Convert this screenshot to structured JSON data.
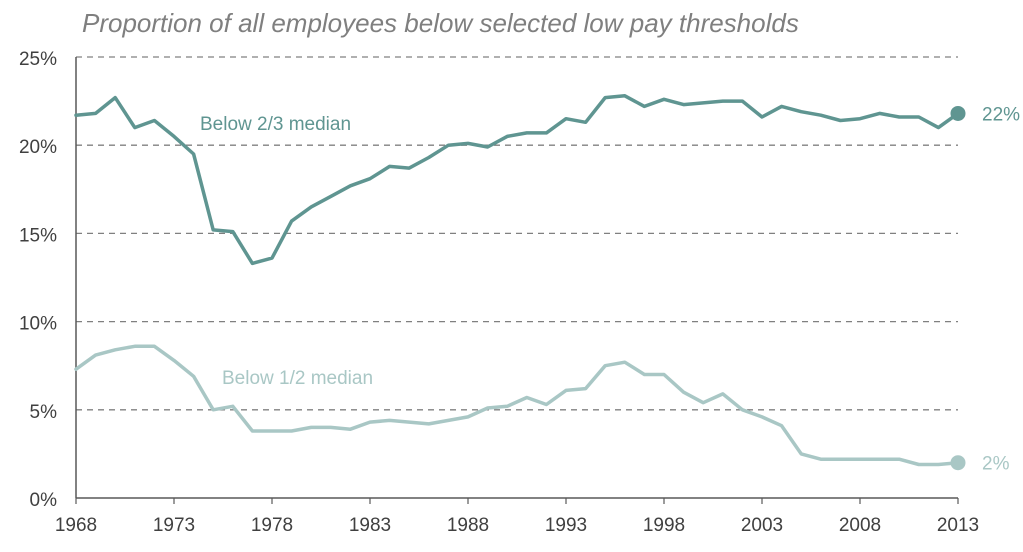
{
  "colors": {
    "dark_series": "#5f9591",
    "light_series": "#a9c7c5",
    "title": "#7f7f7f",
    "axis_text": "#404040",
    "grid": "#808080"
  },
  "chart_data": {
    "type": "line",
    "title": "Proportion of all employees below selected low pay thresholds",
    "xlabel": "",
    "ylabel": "",
    "xlim": [
      1968,
      2013
    ],
    "ylim": [
      0,
      25
    ],
    "x_ticks": [
      "1968",
      "1973",
      "1978",
      "1983",
      "1988",
      "1993",
      "1998",
      "2003",
      "2008",
      "2013"
    ],
    "y_ticks": [
      "0%",
      "5%",
      "10%",
      "15%",
      "20%",
      "25%"
    ],
    "grid": "horizontal dashed",
    "x": [
      1968,
      1969,
      1970,
      1971,
      1972,
      1973,
      1974,
      1975,
      1976,
      1977,
      1978,
      1979,
      1980,
      1981,
      1982,
      1983,
      1984,
      1985,
      1986,
      1987,
      1988,
      1989,
      1990,
      1991,
      1992,
      1993,
      1994,
      1995,
      1996,
      1997,
      1998,
      1999,
      2000,
      2001,
      2002,
      2003,
      2004,
      2005,
      2006,
      2007,
      2008,
      2009,
      2010,
      2011,
      2012,
      2013
    ],
    "series": [
      {
        "name": "Below 2/3 median",
        "end_label": "22%",
        "values": [
          21.7,
          21.8,
          22.7,
          21.0,
          21.4,
          20.5,
          19.5,
          15.2,
          15.1,
          13.3,
          13.6,
          15.7,
          16.5,
          17.1,
          17.7,
          18.1,
          18.8,
          18.7,
          19.3,
          20.0,
          20.1,
          19.9,
          20.5,
          20.7,
          20.7,
          21.5,
          21.3,
          22.7,
          22.8,
          22.2,
          22.6,
          22.3,
          22.4,
          22.5,
          22.5,
          21.6,
          22.2,
          21.9,
          21.7,
          21.4,
          21.5,
          21.8,
          21.6,
          21.6,
          21.0,
          21.8
        ]
      },
      {
        "name": "Below 1/2 median",
        "end_label": "2%",
        "values": [
          7.3,
          8.1,
          8.4,
          8.6,
          8.6,
          7.8,
          6.9,
          5.0,
          5.2,
          3.8,
          3.8,
          3.8,
          4.0,
          4.0,
          3.9,
          4.3,
          4.4,
          4.3,
          4.2,
          4.4,
          4.6,
          5.1,
          5.2,
          5.7,
          5.3,
          6.1,
          6.2,
          7.5,
          7.7,
          7.0,
          7.0,
          6.0,
          5.4,
          5.9,
          5.0,
          4.6,
          4.1,
          2.5,
          2.2,
          2.2,
          2.2,
          2.2,
          2.2,
          1.9,
          1.9,
          2.0
        ]
      }
    ]
  }
}
